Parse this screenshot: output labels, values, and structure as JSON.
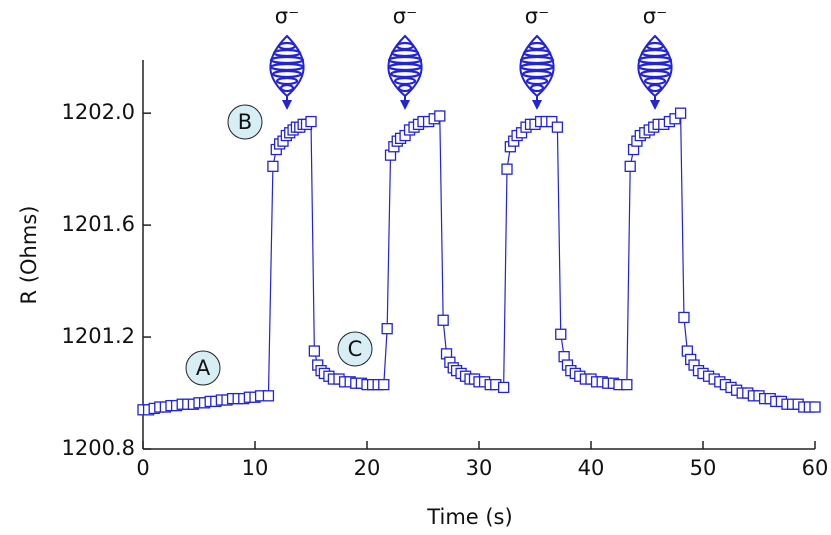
{
  "chart_data": {
    "type": "line",
    "xlabel": "Time (s)",
    "ylabel": "R (Ohms)",
    "xlim": [
      0,
      60
    ],
    "ylim": [
      1200.8,
      1202.19
    ],
    "xticks": [
      0,
      10,
      20,
      30,
      40,
      50,
      60
    ],
    "yticks": [
      1200.8,
      1201.2,
      1201.6,
      {
        "value": 1202,
        "label": "1202.0"
      }
    ],
    "grid": false,
    "annotations": [
      "A",
      "B",
      "C"
    ],
    "beam_labels": [
      "σ⁻",
      "σ⁻",
      "σ⁻",
      "σ⁻"
    ],
    "series": [
      {
        "color": "#2323d8",
        "x": [
          0,
          0.5,
          1,
          1.5,
          2,
          2.5,
          3,
          3.5,
          4,
          4.5,
          5,
          5.5,
          6,
          6.5,
          7,
          7.5,
          8,
          8.5,
          9,
          9.5,
          10,
          10.5,
          11.2,
          11.6,
          11.9,
          12.2,
          12.5,
          12.8,
          13.1,
          13.4,
          13.7,
          14,
          14.3,
          14.6,
          15,
          15.3,
          15.6,
          15.9,
          16.2,
          16.6,
          17,
          17.5,
          18,
          18.5,
          19,
          19.5,
          20,
          20.5,
          21,
          21.5,
          21.8,
          22.1,
          22.4,
          22.7,
          23,
          23.4,
          23.8,
          24.2,
          24.6,
          25,
          25.5,
          26,
          26.5,
          26.8,
          27.1,
          27.4,
          27.7,
          28,
          28.4,
          28.8,
          29.2,
          29.6,
          30,
          30.5,
          31,
          31.5,
          32.2,
          32.5,
          32.8,
          33.1,
          33.4,
          33.8,
          34.2,
          34.6,
          35,
          35.5,
          36,
          36.5,
          37,
          37.3,
          37.6,
          37.9,
          38.2,
          38.6,
          39,
          39.5,
          40,
          40.5,
          41,
          41.5,
          42,
          42.5,
          43.2,
          43.5,
          43.8,
          44.1,
          44.4,
          44.8,
          45.2,
          45.6,
          46,
          46.5,
          47,
          47.5,
          48,
          48.3,
          48.6,
          48.9,
          49.2,
          49.6,
          50,
          50.5,
          51,
          51.5,
          52,
          52.5,
          53,
          53.5,
          54,
          54.5,
          55,
          55.5,
          56,
          56.5,
          57,
          57.5,
          58,
          58.5,
          59,
          59.5,
          60
        ],
        "values": [
          1200.94,
          1200.94,
          1200.945,
          1200.95,
          1200.95,
          1200.955,
          1200.955,
          1200.96,
          1200.96,
          1200.96,
          1200.965,
          1200.965,
          1200.97,
          1200.97,
          1200.975,
          1200.975,
          1200.98,
          1200.98,
          1200.98,
          1200.985,
          1200.985,
          1200.99,
          1200.99,
          1201.81,
          1201.87,
          1201.89,
          1201.9,
          1201.92,
          1201.93,
          1201.94,
          1201.95,
          1201.95,
          1201.96,
          1201.96,
          1201.97,
          1201.15,
          1201.1,
          1201.08,
          1201.07,
          1201.06,
          1201.05,
          1201.05,
          1201.04,
          1201.04,
          1201.035,
          1201.035,
          1201.03,
          1201.03,
          1201.03,
          1201.03,
          1201.23,
          1201.85,
          1201.88,
          1201.9,
          1201.91,
          1201.92,
          1201.94,
          1201.95,
          1201.96,
          1201.97,
          1201.97,
          1201.98,
          1201.99,
          1201.26,
          1201.14,
          1201.11,
          1201.09,
          1201.08,
          1201.07,
          1201.06,
          1201.05,
          1201.05,
          1201.04,
          1201.04,
          1201.03,
          1201.03,
          1201.02,
          1201.8,
          1201.88,
          1201.9,
          1201.92,
          1201.93,
          1201.95,
          1201.96,
          1201.96,
          1201.97,
          1201.97,
          1201.97,
          1201.95,
          1201.21,
          1201.13,
          1201.1,
          1201.08,
          1201.07,
          1201.06,
          1201.05,
          1201.05,
          1201.04,
          1201.04,
          1201.035,
          1201.035,
          1201.03,
          1201.03,
          1201.81,
          1201.87,
          1201.9,
          1201.92,
          1201.93,
          1201.94,
          1201.95,
          1201.96,
          1201.96,
          1201.97,
          1201.98,
          1202.0,
          1201.27,
          1201.15,
          1201.12,
          1201.1,
          1201.08,
          1201.07,
          1201.06,
          1201.05,
          1201.04,
          1201.03,
          1201.02,
          1201.01,
          1201.0,
          1201.0,
          1200.99,
          1200.99,
          1200.98,
          1200.98,
          1200.97,
          1200.97,
          1200.96,
          1200.96,
          1200.96,
          1200.95,
          1200.95,
          1200.95
        ]
      }
    ]
  }
}
